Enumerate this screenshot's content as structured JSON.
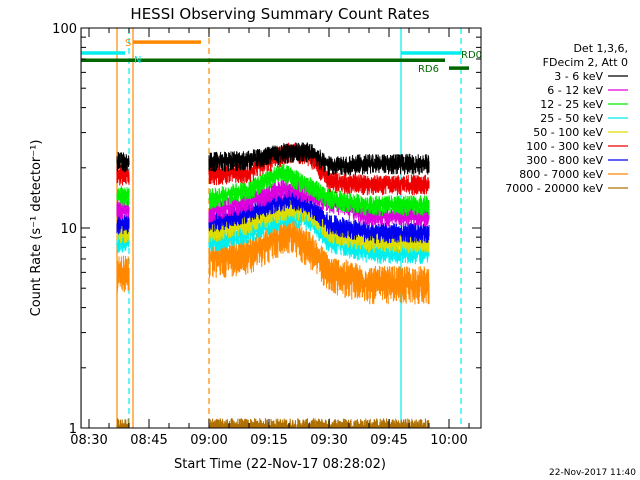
{
  "chart_data": {
    "type": "line",
    "title": "HESSI Observing Summary Count Rates",
    "xlabel": "Start Time (22-Nov-17 08:28:02)",
    "ylabel": "Count Rate (s⁻¹ detector⁻¹)",
    "y_scale": "log",
    "ylim": [
      1,
      100
    ],
    "xlim": [
      "08:28",
      "10:08"
    ],
    "x_tick_labels": [
      "08:30",
      "08:45",
      "09:00",
      "09:15",
      "09:30",
      "09:45",
      "10:00"
    ],
    "y_tick_labels": [
      "1",
      "10",
      "100"
    ],
    "timestamp": "22-Nov-2017 11:40",
    "legend": {
      "placement": "right",
      "header": [
        "Det 1,3,6,",
        "FDecim 2, Att 0"
      ],
      "entries": [
        {
          "label": "3 - 6 keV",
          "color": "#000000"
        },
        {
          "label": "6 - 12 keV",
          "color": "#dd00dd"
        },
        {
          "label": "12 - 25 keV",
          "color": "#00ee00"
        },
        {
          "label": "25 - 50 keV",
          "color": "#00eeee"
        },
        {
          "label": "50 - 100 keV",
          "color": "#dddd00"
        },
        {
          "label": "100 - 300 keV",
          "color": "#ee0000"
        },
        {
          "label": "300 - 800 keV",
          "color": "#0000ee"
        },
        {
          "label": "800 - 7000 keV",
          "color": "#ff8800"
        },
        {
          "label": "7000 - 20000 keV",
          "color": "#b07000"
        }
      ]
    },
    "flag_labels": {
      "saa": "S",
      "night": "N",
      "rd0": "RD0",
      "rd6": "RD6"
    },
    "flags": [
      {
        "name": "N",
        "color": "#00eeee",
        "y": 75,
        "x_start": "08:28",
        "x_end": "08:39"
      },
      {
        "name": "N",
        "color": "#00eeee",
        "y": 75,
        "x_start": "09:48",
        "x_end": "10:03"
      },
      {
        "name": "S",
        "color": "#ff8800",
        "y": 85,
        "x_start": "08:41",
        "x_end": "08:58"
      },
      {
        "name": "RD0",
        "color": "#006600",
        "y": 69,
        "x_start": "08:28",
        "x_end": "09:59"
      },
      {
        "name": "RD6",
        "color": "#006600",
        "y": 63,
        "x_start": "10:00",
        "x_end": "10:05"
      }
    ],
    "vlines": [
      {
        "x": "08:28:02",
        "color": "#00eeee",
        "style": "solid"
      },
      {
        "x": "08:40",
        "color": "#00eeee",
        "style": "dashed"
      },
      {
        "x": "09:48",
        "color": "#00eeee",
        "style": "solid"
      },
      {
        "x": "10:03",
        "color": "#00eeee",
        "style": "dashed"
      },
      {
        "x": "08:37",
        "color": "#ff8800",
        "style": "solid"
      },
      {
        "x": "08:41",
        "color": "#ff8800",
        "style": "solid"
      },
      {
        "x": "09:00",
        "color": "#ff8800",
        "style": "dashed"
      }
    ],
    "data_segments": [
      {
        "start": "08:37",
        "end": "08:40"
      },
      {
        "start": "09:00",
        "end": "09:55"
      }
    ],
    "series": [
      {
        "name": "3 - 6 keV",
        "color": "#000000",
        "x": [
          "08:37",
          "08:40",
          "09:00",
          "09:10",
          "09:20",
          "09:25",
          "09:30",
          "09:40",
          "09:55"
        ],
        "values": [
          21.5,
          21.5,
          21.5,
          22,
          24,
          24,
          20.5,
          21,
          21
        ]
      },
      {
        "name": "100 - 300 keV",
        "color": "#ee0000",
        "x": [
          "08:37",
          "08:40",
          "09:00",
          "09:10",
          "09:20",
          "09:25",
          "09:30",
          "09:40",
          "09:55"
        ],
        "values": [
          18.5,
          18.5,
          18.5,
          19,
          24,
          23,
          17,
          16.5,
          16.5
        ]
      },
      {
        "name": "12 - 25 keV",
        "color": "#00ee00",
        "x": [
          "08:37",
          "08:40",
          "09:00",
          "09:10",
          "09:18",
          "09:22",
          "09:30",
          "09:40",
          "09:55"
        ],
        "values": [
          14.5,
          14.5,
          14,
          15.5,
          19,
          17.5,
          14,
          13,
          13
        ]
      },
      {
        "name": "6 - 12 keV",
        "color": "#dd00dd",
        "x": [
          "08:37",
          "08:40",
          "09:00",
          "09:10",
          "09:20",
          "09:30",
          "09:40",
          "09:55"
        ],
        "values": [
          12.5,
          12.5,
          12,
          13.5,
          16,
          13.5,
          11.5,
          11.5
        ]
      },
      {
        "name": "300 - 800 keV",
        "color": "#0000ee",
        "x": [
          "08:37",
          "08:40",
          "09:00",
          "09:10",
          "09:20",
          "09:25",
          "09:30",
          "09:40",
          "09:55"
        ],
        "values": [
          10.5,
          10.5,
          10.5,
          12,
          14,
          13,
          10.5,
          9.5,
          9.5
        ]
      },
      {
        "name": "50 - 100 keV",
        "color": "#dddd00",
        "x": [
          "08:37",
          "08:40",
          "09:00",
          "09:10",
          "09:20",
          "09:25",
          "09:30",
          "09:40",
          "09:55"
        ],
        "values": [
          9.5,
          9.5,
          9.5,
          10.5,
          12.5,
          12,
          9.5,
          8.5,
          8.5
        ]
      },
      {
        "name": "25 - 50 keV",
        "color": "#00eeee",
        "x": [
          "08:37",
          "08:40",
          "09:00",
          "09:10",
          "09:20",
          "09:25",
          "09:30",
          "09:40",
          "09:55"
        ],
        "values": [
          8.5,
          8.5,
          8.5,
          9.5,
          11.5,
          11,
          8.5,
          7.5,
          7.5
        ]
      },
      {
        "name": "800 - 7000 keV",
        "color": "#ff8800",
        "x": [
          "08:37",
          "08:40",
          "09:00",
          "09:10",
          "09:20",
          "09:25",
          "09:30",
          "09:40",
          "09:55"
        ],
        "values": [
          6,
          6,
          7,
          7.5,
          9.5,
          8,
          6,
          5.3,
          5.3
        ]
      },
      {
        "name": "7000 - 20000 keV",
        "color": "#b07000",
        "x": [
          "08:37",
          "08:40",
          "09:00",
          "09:55"
        ],
        "values": [
          1,
          1,
          1,
          1
        ]
      }
    ]
  }
}
